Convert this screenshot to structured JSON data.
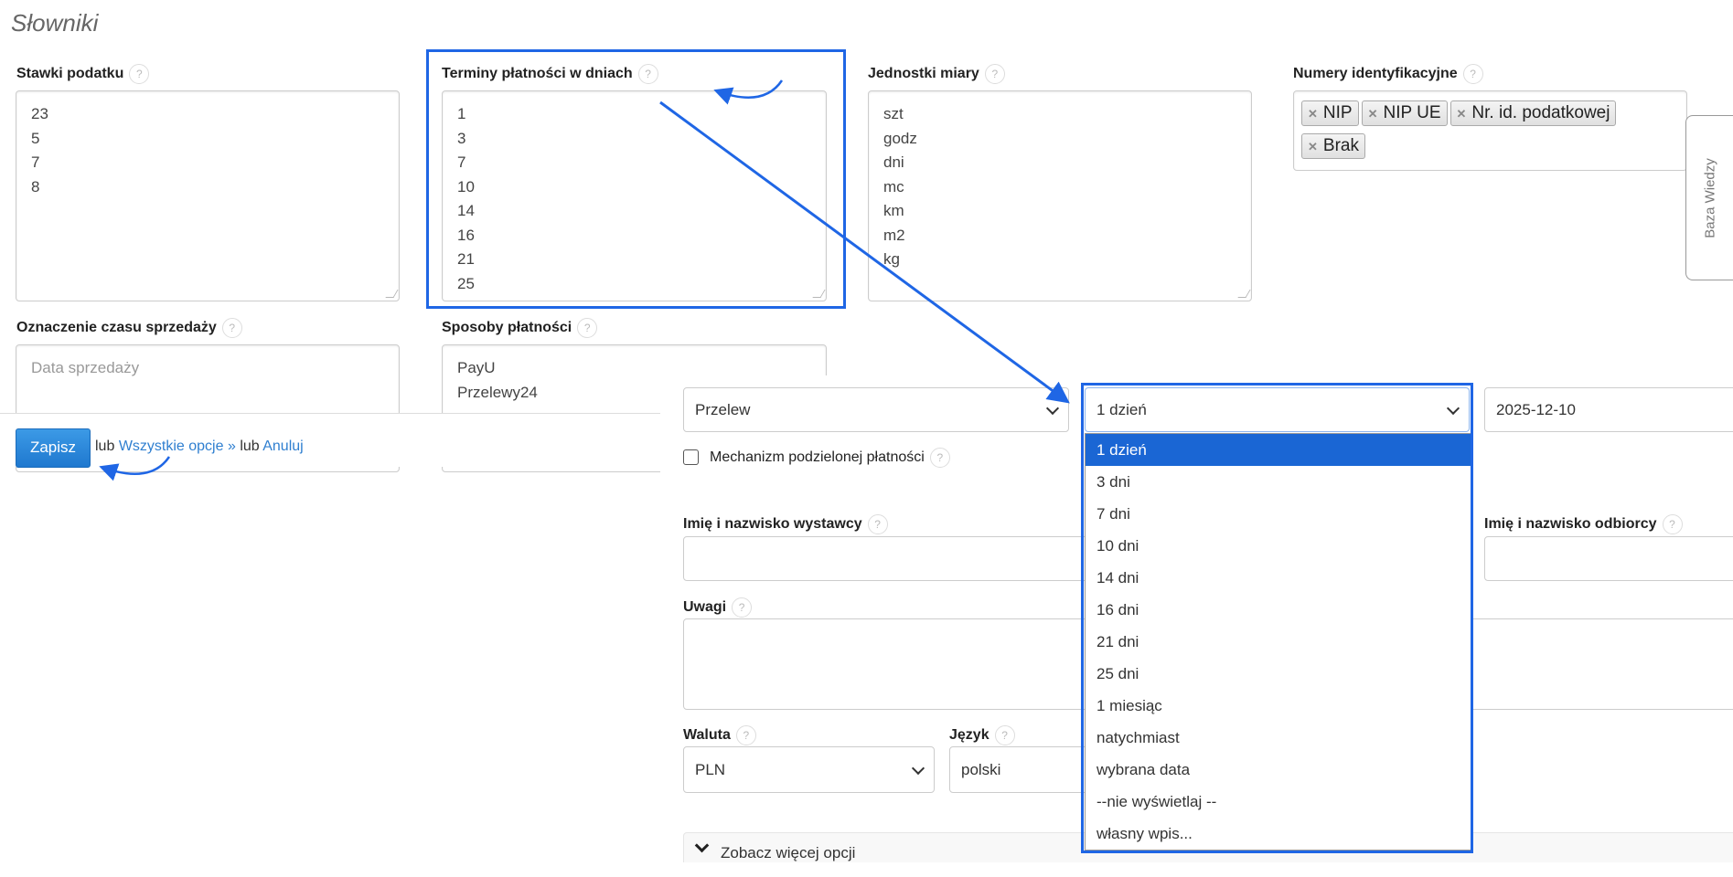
{
  "page": {
    "title": "Słowniki"
  },
  "dictionaries": {
    "tax_rates": {
      "label": "Stawki podatku",
      "values": [
        "23",
        "5",
        "7",
        "8"
      ]
    },
    "payment_terms": {
      "label": "Terminy płatności w dniach",
      "values": [
        "1",
        "3",
        "7",
        "10",
        "14",
        "16",
        "21",
        "25"
      ]
    },
    "units": {
      "label": "Jednostki miary",
      "values": [
        "szt",
        "godz",
        "dni",
        "mc",
        "km",
        "m2",
        "kg"
      ]
    },
    "id_numbers": {
      "label": "Numery identyfikacyjne",
      "tags": [
        "NIP",
        "NIP UE",
        "Nr. id. podatkowej",
        "Brak"
      ]
    },
    "sale_date_label": {
      "label": "Oznaczenie czasu sprzedaży",
      "placeholder": "Data sprzedaży"
    },
    "payment_methods": {
      "label": "Sposoby płatności",
      "values": [
        "PayU",
        "Przelewy24"
      ]
    }
  },
  "help_icon": "?",
  "knowledge_base_tab": "Baza Wiedzy",
  "footer": {
    "save": "Zapisz",
    "or1": "lub",
    "all_options": "Wszystkie opcje »",
    "or2": "lub",
    "cancel": "Anuluj"
  },
  "invoice_form": {
    "payment_method": "Przelew",
    "payment_term": "1 dzień",
    "payment_date": "2025-12-10",
    "split_payment_label": "Mechanizm podzielonej płatności",
    "split_payment_checked": false,
    "issuer_label": "Imię i nazwisko wystawcy",
    "recipient_label": "Imię i nazwisko odbiorcy",
    "notes_label": "Uwagi",
    "currency_label": "Waluta",
    "currency": "PLN",
    "language_label": "Język",
    "language": "polski",
    "more_options": "Zobacz więcej opcji",
    "term_options": [
      "1 dzień",
      "3 dni",
      "7 dni",
      "10 dni",
      "14 dni",
      "16 dni",
      "21 dni",
      "25 dni",
      "1 miesiąc",
      "natychmiast",
      "wybrana data",
      "--nie wyświetlaj --",
      "własny wpis..."
    ],
    "selected_term_index": 0
  },
  "annotation_color": "#1f66e5",
  "selected_option_color": "#1a66d4"
}
